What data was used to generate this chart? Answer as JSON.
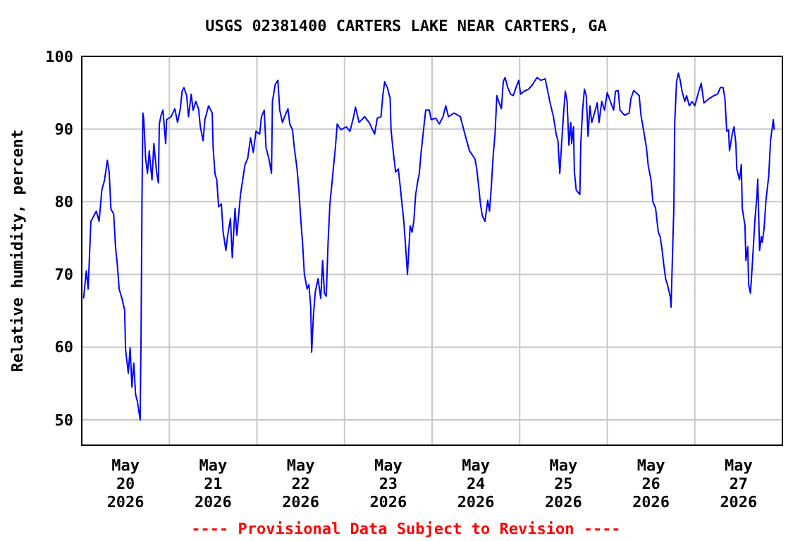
{
  "chart_data": {
    "type": "line",
    "title": "USGS 02381400 CARTERS LAKE NEAR CARTERS, GA",
    "ylabel": "Relative humidity, percent",
    "annotations": [
      "---- Provisional Data Subject to Revision ----"
    ],
    "xlim": [
      "2026-05-20T00:00",
      "2026-05-28T00:00"
    ],
    "xticks": [
      {
        "value": "2026-05-20T12:00",
        "label": "May\n20\n2026"
      },
      {
        "value": "2026-05-21T00:00",
        "label": null
      },
      {
        "value": "2026-05-21T12:00",
        "label": "May\n21\n2026"
      },
      {
        "value": "2026-05-22T00:00",
        "label": null
      },
      {
        "value": "2026-05-22T12:00",
        "label": "May\n22\n2026"
      },
      {
        "value": "2026-05-23T00:00",
        "label": null
      },
      {
        "value": "2026-05-23T12:00",
        "label": "May\n23\n2026"
      },
      {
        "value": "2026-05-24T00:00",
        "label": null
      },
      {
        "value": "2026-05-24T12:00",
        "label": "May\n24\n2026"
      },
      {
        "value": "2026-05-25T00:00",
        "label": null
      },
      {
        "value": "2026-05-25T12:00",
        "label": "May\n25\n2026"
      },
      {
        "value": "2026-05-26T00:00",
        "label": null
      },
      {
        "value": "2026-05-26T12:00",
        "label": "May\n26\n2026"
      },
      {
        "value": "2026-05-27T00:00",
        "label": null
      },
      {
        "value": "2026-05-27T12:00",
        "label": "May\n27\n2026"
      }
    ],
    "ylim": [
      46.5,
      100
    ],
    "yticks": [
      50,
      60,
      70,
      80,
      90,
      100
    ],
    "grid": true,
    "series": [
      {
        "color": "#0000ff",
        "x": [
          "2026-05-20T00:30",
          "2026-05-20T01:15",
          "2026-05-20T01:45",
          "2026-05-20T02:30",
          "2026-05-20T04:00",
          "2026-05-20T04:45",
          "2026-05-20T05:30",
          "2026-05-20T06:15",
          "2026-05-20T07:00",
          "2026-05-20T07:30",
          "2026-05-20T08:00",
          "2026-05-20T08:45",
          "2026-05-20T09:15",
          "2026-05-20T09:45",
          "2026-05-20T10:15",
          "2026-05-20T11:00",
          "2026-05-20T11:45",
          "2026-05-20T12:00",
          "2026-05-20T12:45",
          "2026-05-20T13:15",
          "2026-05-20T13:45",
          "2026-05-20T14:15",
          "2026-05-20T14:45",
          "2026-05-20T15:15",
          "2026-05-20T16:00",
          "2026-05-20T16:15",
          "2026-05-20T16:30",
          "2026-05-20T16:45",
          "2026-05-20T17:00",
          "2026-05-20T17:30",
          "2026-05-20T18:00",
          "2026-05-20T18:30",
          "2026-05-20T18:45",
          "2026-05-20T19:15",
          "2026-05-20T19:45",
          "2026-05-20T20:30",
          "2026-05-20T21:00",
          "2026-05-20T21:15",
          "2026-05-20T21:45",
          "2026-05-20T22:15",
          "2026-05-20T23:00",
          "2026-05-20T23:15",
          "2026-05-21T00:30",
          "2026-05-21T01:30",
          "2026-05-21T02:15",
          "2026-05-21T03:00",
          "2026-05-21T03:30",
          "2026-05-21T04:00",
          "2026-05-21T04:45",
          "2026-05-21T05:15",
          "2026-05-21T06:00",
          "2026-05-21T06:30",
          "2026-05-21T07:15",
          "2026-05-21T08:00",
          "2026-05-21T08:30",
          "2026-05-21T09:15",
          "2026-05-21T09:45",
          "2026-05-21T10:45",
          "2026-05-21T11:45",
          "2026-05-21T12:00",
          "2026-05-21T12:30",
          "2026-05-21T13:00",
          "2026-05-21T13:30",
          "2026-05-21T14:15",
          "2026-05-21T14:45",
          "2026-05-21T15:30",
          "2026-05-21T16:00",
          "2026-05-21T16:45",
          "2026-05-21T17:15",
          "2026-05-21T18:00",
          "2026-05-21T18:30",
          "2026-05-21T19:30",
          "2026-05-21T20:15",
          "2026-05-21T20:45",
          "2026-05-21T21:30",
          "2026-05-21T22:15",
          "2026-05-21T23:00",
          "2026-05-21T23:45",
          "2026-05-22T00:45",
          "2026-05-22T01:15",
          "2026-05-22T02:00",
          "2026-05-22T02:30",
          "2026-05-22T03:15",
          "2026-05-22T04:00",
          "2026-05-22T04:15",
          "2026-05-22T05:00",
          "2026-05-22T05:45",
          "2026-05-22T06:15",
          "2026-05-22T07:00",
          "2026-05-22T07:45",
          "2026-05-22T08:30",
          "2026-05-22T09:00",
          "2026-05-22T09:45",
          "2026-05-22T10:15",
          "2026-05-22T11:00",
          "2026-05-22T11:30",
          "2026-05-22T12:00",
          "2026-05-22T12:30",
          "2026-05-22T13:00",
          "2026-05-22T13:45",
          "2026-05-22T14:15",
          "2026-05-22T14:45",
          "2026-05-22T15:00",
          "2026-05-22T15:30",
          "2026-05-22T16:00",
          "2026-05-22T16:45",
          "2026-05-22T17:30",
          "2026-05-22T18:00",
          "2026-05-22T18:30",
          "2026-05-22T19:00",
          "2026-05-22T19:30",
          "2026-05-22T20:00",
          "2026-05-22T20:30",
          "2026-05-22T21:00",
          "2026-05-22T21:30",
          "2026-05-22T22:00",
          "2026-05-22T23:00",
          "2026-05-23T00:30",
          "2026-05-23T01:30",
          "2026-05-23T02:30",
          "2026-05-23T03:00",
          "2026-05-23T04:00",
          "2026-05-23T05:30",
          "2026-05-23T06:45",
          "2026-05-23T08:15",
          "2026-05-23T09:00",
          "2026-05-23T10:00",
          "2026-05-23T10:30",
          "2026-05-23T11:00",
          "2026-05-23T11:45",
          "2026-05-23T12:30",
          "2026-05-23T12:45",
          "2026-05-23T13:15",
          "2026-05-23T14:00",
          "2026-05-23T14:45",
          "2026-05-23T15:15",
          "2026-05-23T15:45",
          "2026-05-23T16:15",
          "2026-05-23T16:45",
          "2026-05-23T17:15",
          "2026-05-23T18:00",
          "2026-05-23T18:30",
          "2026-05-23T19:00",
          "2026-05-23T19:30",
          "2026-05-23T20:00",
          "2026-05-23T20:30",
          "2026-05-23T21:00",
          "2026-05-23T21:45",
          "2026-05-23T22:15",
          "2026-05-23T23:15",
          "2026-05-23T23:45",
          "2026-05-24T01:00",
          "2026-05-24T02:00",
          "2026-05-24T03:00",
          "2026-05-24T03:45",
          "2026-05-24T04:30",
          "2026-05-24T06:00",
          "2026-05-24T07:45",
          "2026-05-24T09:00",
          "2026-05-24T10:15",
          "2026-05-24T11:45",
          "2026-05-24T12:15",
          "2026-05-24T12:45",
          "2026-05-24T13:15",
          "2026-05-24T13:45",
          "2026-05-24T14:30",
          "2026-05-24T15:15",
          "2026-05-24T15:45",
          "2026-05-24T16:15",
          "2026-05-24T16:45",
          "2026-05-24T17:15",
          "2026-05-24T17:45",
          "2026-05-24T18:15",
          "2026-05-24T19:00",
          "2026-05-24T19:30",
          "2026-05-24T20:00",
          "2026-05-24T20:45",
          "2026-05-24T21:30",
          "2026-05-24T22:15",
          "2026-05-24T23:00",
          "2026-05-24T23:45",
          "2026-05-25T00:15",
          "2026-05-25T01:15",
          "2026-05-25T02:30",
          "2026-05-25T03:30",
          "2026-05-25T04:45",
          "2026-05-25T05:45",
          "2026-05-25T07:00",
          "2026-05-25T07:30",
          "2026-05-25T08:15",
          "2026-05-25T09:15",
          "2026-05-25T10:00",
          "2026-05-25T10:30",
          "2026-05-25T11:00",
          "2026-05-25T11:30",
          "2026-05-25T12:00",
          "2026-05-25T12:30",
          "2026-05-25T13:00",
          "2026-05-25T13:30",
          "2026-05-25T14:00",
          "2026-05-25T14:15",
          "2026-05-25T14:45",
          "2026-05-25T15:00",
          "2026-05-25T15:30",
          "2026-05-25T16:30",
          "2026-05-25T16:45",
          "2026-05-25T17:15",
          "2026-05-25T17:45",
          "2026-05-25T18:15",
          "2026-05-25T18:45",
          "2026-05-25T19:15",
          "2026-05-25T19:45",
          "2026-05-25T20:30",
          "2026-05-25T21:15",
          "2026-05-25T21:45",
          "2026-05-25T22:30",
          "2026-05-25T23:15",
          "2026-05-26T00:00",
          "2026-05-26T01:00",
          "2026-05-26T01:45",
          "2026-05-26T02:15",
          "2026-05-26T03:00",
          "2026-05-26T03:30",
          "2026-05-26T04:45",
          "2026-05-26T06:00",
          "2026-05-26T06:30",
          "2026-05-26T07:15",
          "2026-05-26T08:45",
          "2026-05-26T09:15",
          "2026-05-26T10:00",
          "2026-05-26T10:45",
          "2026-05-26T11:15",
          "2026-05-26T12:00",
          "2026-05-26T12:30",
          "2026-05-26T13:15",
          "2026-05-26T14:00",
          "2026-05-26T14:30",
          "2026-05-26T15:00",
          "2026-05-26T15:30",
          "2026-05-26T16:00",
          "2026-05-26T16:30",
          "2026-05-26T17:15",
          "2026-05-26T17:30",
          "2026-05-26T17:45",
          "2026-05-26T18:15",
          "2026-05-26T18:30",
          "2026-05-26T19:00",
          "2026-05-26T19:30",
          "2026-05-26T20:00",
          "2026-05-26T20:30",
          "2026-05-26T21:15",
          "2026-05-26T21:45",
          "2026-05-26T22:30",
          "2026-05-26T23:15",
          "2026-05-27T00:00",
          "2026-05-27T00:45",
          "2026-05-27T01:45",
          "2026-05-27T02:30",
          "2026-05-27T04:00",
          "2026-05-27T05:15",
          "2026-05-27T06:15",
          "2026-05-27T07:00",
          "2026-05-27T07:45",
          "2026-05-27T08:15",
          "2026-05-27T08:45",
          "2026-05-27T09:15",
          "2026-05-27T09:30",
          "2026-05-27T10:15",
          "2026-05-27T10:45",
          "2026-05-27T11:15",
          "2026-05-27T11:30",
          "2026-05-27T12:15",
          "2026-05-27T12:45",
          "2026-05-27T13:00",
          "2026-05-27T13:45",
          "2026-05-27T14:00",
          "2026-05-27T14:30",
          "2026-05-27T14:45",
          "2026-05-27T15:15",
          "2026-05-27T15:45",
          "2026-05-27T16:30",
          "2026-05-27T17:00",
          "2026-05-27T17:15",
          "2026-05-27T17:45",
          "2026-05-27T18:15",
          "2026-05-27T18:30",
          "2026-05-27T19:00",
          "2026-05-27T19:30",
          "2026-05-27T20:15",
          "2026-05-27T20:45",
          "2026-05-27T21:30",
          "2026-05-27T21:45"
        ],
        "values": [
          66.7,
          70.5,
          68,
          77.3,
          78.7,
          77.3,
          81.6,
          83,
          85.7,
          84.1,
          79,
          78.3,
          73.8,
          71.3,
          68,
          66.7,
          65.1,
          59.7,
          56.4,
          59.9,
          54.5,
          57.8,
          53.5,
          52.5,
          50,
          61.6,
          80,
          92.2,
          91.3,
          86,
          83.9,
          87,
          85.5,
          83,
          88,
          84.1,
          82.6,
          90.7,
          91.9,
          92.6,
          88,
          91.3,
          91.7,
          92.8,
          90.9,
          92.8,
          95.2,
          95.7,
          94.6,
          91.7,
          94.8,
          92.6,
          93.8,
          92.8,
          90.3,
          88.4,
          91.3,
          93.2,
          92.2,
          87.4,
          83.9,
          83,
          79.3,
          79.7,
          75.8,
          73.3,
          75.4,
          77.7,
          72.3,
          79.1,
          75.4,
          81,
          83.5,
          85.1,
          86,
          88.8,
          86.8,
          89.7,
          89.3,
          91.7,
          92.6,
          87.4,
          86,
          83.9,
          93.8,
          96.1,
          96.7,
          92.6,
          90.9,
          91.9,
          92.8,
          90.7,
          89.9,
          87.4,
          84.5,
          81.6,
          77.7,
          74.4,
          70,
          68,
          68.6,
          65.5,
          59.3,
          64.5,
          67.6,
          69.4,
          66.7,
          71.9,
          67.4,
          67,
          74.4,
          79.7,
          82.2,
          84.9,
          87.4,
          90.7,
          89.9,
          90.3,
          89.7,
          91.7,
          93,
          90.9,
          91.7,
          90.9,
          89.3,
          91.5,
          91.7,
          94.6,
          96.5,
          95.7,
          94.2,
          89.9,
          87.4,
          84.1,
          84.5,
          82.2,
          79.7,
          77.3,
          73.8,
          70,
          76.7,
          75.8,
          77.3,
          81,
          82.6,
          83.9,
          86.8,
          90.3,
          92.6,
          92.6,
          91.3,
          91.5,
          90.7,
          91.7,
          93.2,
          91.7,
          92.2,
          91.7,
          89.3,
          87,
          85.9,
          84.5,
          82.2,
          79.7,
          78.1,
          77.3,
          80.2,
          78.7,
          82.2,
          86.4,
          89.3,
          94.6,
          93.8,
          92.8,
          96.5,
          97.1,
          95.7,
          94.8,
          94.6,
          95.7,
          96.7,
          94.8,
          95.2,
          95.5,
          96.1,
          97.1,
          96.7,
          96.9,
          95.7,
          93.8,
          91.7,
          89.3,
          88.4,
          83.9,
          88,
          91.9,
          95.2,
          93.8,
          87.8,
          90.9,
          88,
          90.3,
          84.1,
          81.6,
          81,
          88,
          92.6,
          95.5,
          94.6,
          89,
          93.2,
          90.9,
          92.2,
          93.6,
          90.9,
          93.8,
          92.6,
          95,
          93.6,
          92.6,
          95.2,
          95.3,
          92.6,
          91.9,
          92.2,
          94.2,
          95.3,
          94.6,
          91.9,
          89.7,
          87.4,
          84.9,
          83,
          80,
          79.1,
          75.8,
          75.2,
          73.5,
          71.3,
          69.4,
          68.6,
          67,
          65.5,
          70.3,
          79.1,
          90.9,
          96.5,
          97.7,
          96.7,
          95.2,
          93.8,
          94.6,
          93.2,
          93.8,
          93.2,
          94.6,
          96.3,
          93.6,
          94.2,
          94.6,
          94.8,
          95.7,
          95.7,
          94.2,
          89.7,
          89.9,
          87,
          89.3,
          90.3,
          88,
          84.5,
          83,
          85.1,
          79.1,
          76.7,
          71.9,
          73.8,
          68.6,
          67.4,
          71.3,
          77.7,
          80.6,
          83.1,
          73.3,
          75.2,
          74.4,
          76.4,
          80.2,
          83.5,
          88.4,
          91.3,
          89.9
        ]
      }
    ]
  }
}
